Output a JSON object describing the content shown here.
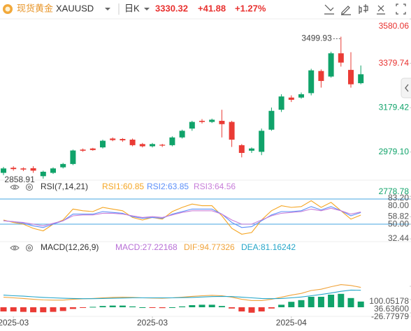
{
  "header": {
    "name": "现货黄金",
    "symbol": "XAUUSD",
    "period": "日K",
    "price": 3330.32,
    "change": "+41.88",
    "change_pct": "+1.27%"
  },
  "chart_data": [
    {
      "type": "candlestick",
      "ylim": [
        2770,
        3590
      ],
      "yticks": [
        3580.06,
        3379.74,
        3179.42,
        {
          "value": 2979.1,
          "label": "2979.10"
        },
        2778.78
      ],
      "up_color": "#10a36a",
      "down_color": "#ea3b35",
      "open": [
        2885,
        2908,
        2905,
        2906,
        2870,
        2885,
        2910,
        2925,
        2990,
        2995,
        3000,
        3040,
        3038,
        3035,
        3015,
        3005,
        3012,
        3010,
        3045,
        3085,
        3120,
        3115,
        3120,
        3115,
        3010,
        2985,
        2980,
        3080,
        3170,
        3225,
        3225,
        3245,
        3345,
        3320,
        3425,
        3350,
        3290
      ],
      "high": [
        2912,
        2915,
        2910,
        2915,
        2895,
        2910,
        2930,
        2990,
        2995,
        2998,
        3035,
        3045,
        3042,
        3040,
        3020,
        3020,
        3016,
        3050,
        3080,
        3120,
        3128,
        3130,
        3170,
        3120,
        3015,
        3000,
        3085,
        3180,
        3240,
        3235,
        3248,
        3355,
        3352,
        3432,
        3499.93,
        3430,
        3370
      ],
      "low": [
        2875,
        2895,
        2893,
        2885,
        2858.91,
        2880,
        2905,
        2920,
        2980,
        2985,
        2995,
        3028,
        3025,
        3005,
        3000,
        3000,
        3002,
        3005,
        3040,
        3075,
        3108,
        3110,
        3045,
        3002,
        2955,
        2975,
        2965,
        3075,
        3160,
        3205,
        3220,
        3235,
        3270,
        3315,
        3365,
        3270,
        3285
      ],
      "close": [
        2905,
        2902,
        2900,
        2895,
        2890,
        2905,
        2925,
        2986,
        2985,
        2988,
        3030,
        3033,
        3032,
        3010,
        3005,
        3015,
        3008,
        3045,
        3075,
        3115,
        3115,
        3125,
        3105,
        3035,
        2975,
        2995,
        3075,
        3165,
        3230,
        3215,
        3240,
        3348,
        3300,
        3425,
        3383,
        3285,
        3330.32
      ]
    },
    {
      "type": "line",
      "title": "RSI(7,14,21)",
      "ylim": [
        30,
        85
      ],
      "yticks": [
        {
          "value": 80,
          "label": "80.00"
        },
        {
          "value": 83.2,
          "label": "83.20"
        },
        58.82,
        {
          "value": 50,
          "label": "50.00"
        },
        32.44
      ],
      "levels": [
        80,
        50
      ],
      "level_color": "#6ab7e8",
      "series": [
        {
          "name": "RSI1:60.85",
          "color": "#f5a623",
          "values": [
            55,
            52,
            50,
            45,
            42,
            50,
            55,
            68,
            66,
            65,
            70,
            68,
            66,
            58,
            55,
            58,
            56,
            65,
            70,
            74,
            72,
            72,
            60,
            45,
            38,
            40,
            55,
            66,
            72,
            70,
            71,
            78,
            70,
            76,
            66,
            56,
            60.85
          ]
        },
        {
          "name": "RSI2:63.85",
          "color": "#5b8ff9",
          "values": [
            54,
            53,
            51,
            48,
            46,
            50,
            54,
            62,
            62,
            62,
            65,
            64,
            63,
            59,
            57,
            58,
            57,
            62,
            65,
            68,
            68,
            68,
            62,
            52,
            46,
            47,
            54,
            61,
            65,
            65,
            66,
            71,
            67,
            71,
            66,
            60,
            63.85
          ]
        },
        {
          "name": "RSI3:64.56",
          "color": "#c77dd9",
          "values": [
            54,
            53,
            52,
            50,
            48,
            51,
            54,
            60,
            61,
            61,
            63,
            63,
            62,
            60,
            58,
            59,
            58,
            61,
            64,
            66,
            66,
            66,
            62,
            55,
            50,
            50,
            55,
            60,
            63,
            64,
            65,
            68,
            66,
            69,
            66,
            62,
            64.56
          ]
        }
      ]
    },
    {
      "type": "macd",
      "title": "MACD(12,26,9)",
      "ylim": [
        -50,
        160
      ],
      "yticks": [
        100.05178,
        {
          "value": 36.636,
          "label": "36.63600"
        },
        -26.77979
      ],
      "up_color": "#10a36a",
      "down_color": "#ea3b35",
      "xticks": [
        {
          "value": 1,
          "label": "2025-03"
        },
        {
          "value": 15,
          "label": "2025-03"
        },
        {
          "value": 29,
          "label": "2025-04"
        }
      ],
      "series": [
        {
          "name": "MACD:27.22168",
          "color": "#b86fd6",
          "values": [
            -20,
            -20,
            -22,
            -24,
            -24,
            -22,
            -18,
            -8,
            -2,
            2,
            6,
            8,
            8,
            4,
            0,
            -2,
            -4,
            0,
            4,
            10,
            12,
            12,
            6,
            -6,
            -20,
            -26,
            -20,
            -6,
            12,
            26,
            34,
            50,
            50,
            60,
            64,
            44,
            27.22168
          ]
        },
        {
          "name": "DIF:94.77326",
          "color": "#f0a33a",
          "values": [
            48,
            45,
            42,
            38,
            35,
            34,
            34,
            38,
            40,
            42,
            45,
            47,
            48,
            47,
            45,
            44,
            43,
            45,
            48,
            52,
            55,
            57,
            55,
            48,
            38,
            32,
            32,
            38,
            48,
            58,
            66,
            80,
            86,
            98,
            108,
            104,
            94.77326
          ]
        },
        {
          "name": "DEA:81.16242",
          "color": "#26a6c9",
          "values": [
            58,
            55,
            53,
            50,
            47,
            45,
            43,
            42,
            41,
            41,
            42,
            43,
            44,
            45,
            45,
            45,
            45,
            45,
            46,
            47,
            49,
            51,
            52,
            51,
            48,
            45,
            42,
            41,
            42,
            45,
            49,
            55,
            61,
            68,
            76,
            82,
            81.16242
          ]
        }
      ]
    }
  ]
}
